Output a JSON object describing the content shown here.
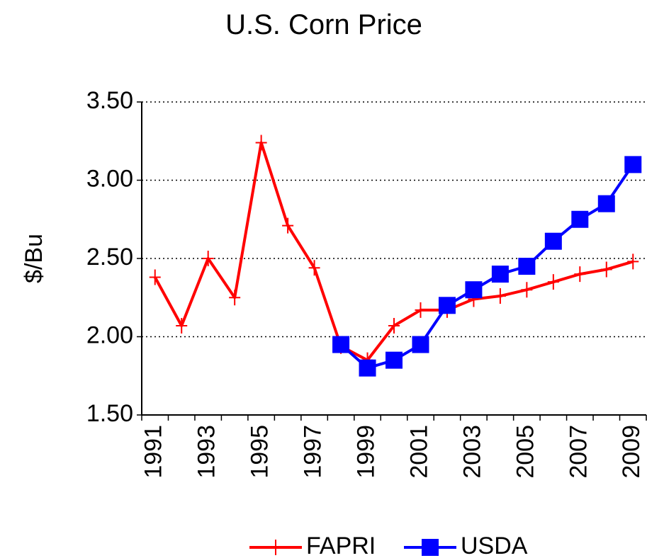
{
  "chart_data": {
    "type": "line",
    "title": "U.S. Corn Price",
    "y_label": "$/Bu",
    "categories": [
      "1991",
      null,
      "1993",
      null,
      "1995",
      null,
      "1997",
      null,
      "1999",
      null,
      "2001",
      null,
      "2003",
      null,
      "2005",
      null,
      "2007",
      null,
      "2009"
    ],
    "series": [
      {
        "name": "FAPRI",
        "color": "#ff0000",
        "marker": "plus",
        "values": [
          2.38,
          2.07,
          2.5,
          2.25,
          3.24,
          2.71,
          2.44,
          1.94,
          1.85,
          2.07,
          2.17,
          2.17,
          2.24,
          2.26,
          2.3,
          2.35,
          2.4,
          2.43,
          2.48
        ]
      },
      {
        "name": "USDA",
        "color": "#0000ff",
        "marker": "square",
        "values": [
          null,
          null,
          null,
          null,
          null,
          null,
          null,
          1.95,
          1.8,
          1.85,
          1.95,
          2.2,
          2.3,
          2.4,
          2.45,
          2.61,
          2.75,
          2.85,
          3.1
        ]
      }
    ],
    "ylim": [
      1.5,
      3.5
    ],
    "yticks": [
      {
        "value": 1.5,
        "label": "1.50"
      },
      {
        "value": 2,
        "label": "2.00"
      },
      {
        "value": 2.5,
        "label": "2.50"
      },
      {
        "value": 3,
        "label": "3.00"
      },
      {
        "value": 3.5,
        "label": "3.50"
      }
    ],
    "grid": true,
    "legend": "bottom"
  }
}
